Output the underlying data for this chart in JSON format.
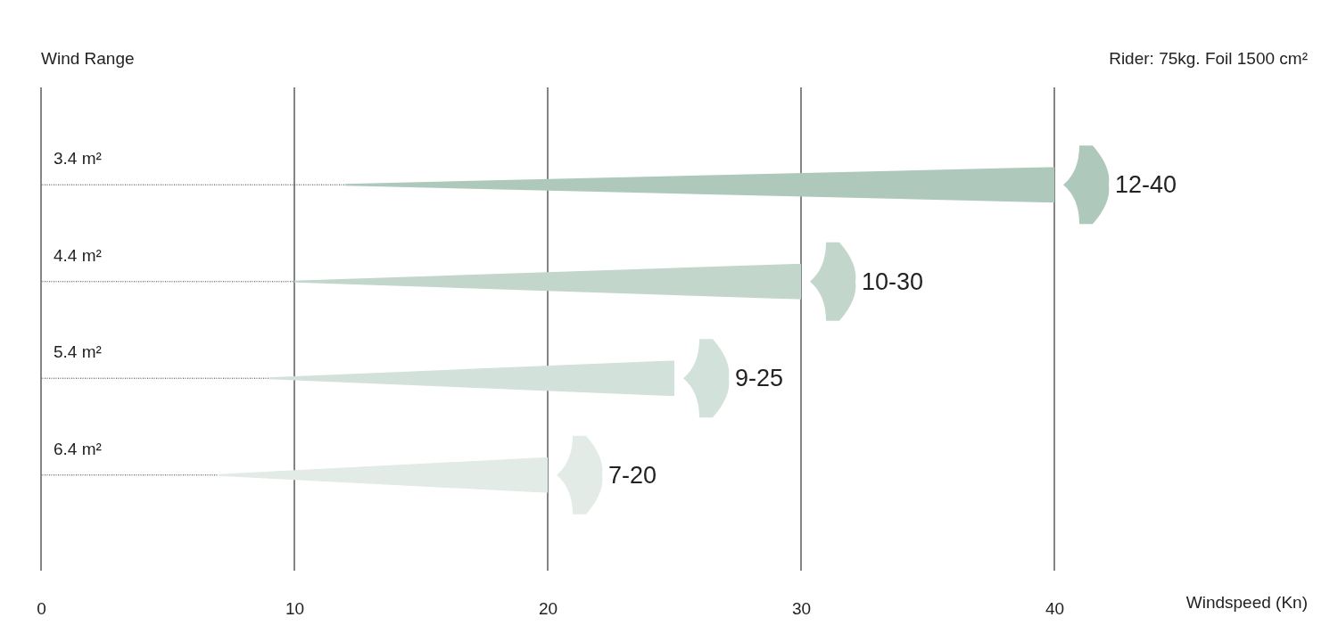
{
  "chart_data": {
    "type": "bar",
    "orientation": "horizontal",
    "stacked": true,
    "title": "Wind Range",
    "annotations": [
      "Rider: 75kg. Foil 1500 cm²",
      "Windspeed (Kn)"
    ],
    "categories": [
      "3.4 m²",
      "4.4 m²",
      "5.4 m²",
      "6.4 m²"
    ],
    "series": [
      {
        "line_style": "dotted",
        "color": "#555555",
        "values": [
          12,
          10,
          9,
          7
        ]
      },
      {
        "colors": [
          "#aec9bc",
          "#c2d6cc",
          "#d2e1d9",
          "#e2ebe6"
        ],
        "values": [
          28,
          20,
          16,
          13
        ],
        "value_labels": [
          "12-40",
          "10-30",
          "9-25",
          "7-20"
        ]
      }
    ],
    "xlim": [
      0,
      40
    ],
    "xticks": [
      0,
      10,
      20,
      30,
      40
    ],
    "grid": "x"
  }
}
